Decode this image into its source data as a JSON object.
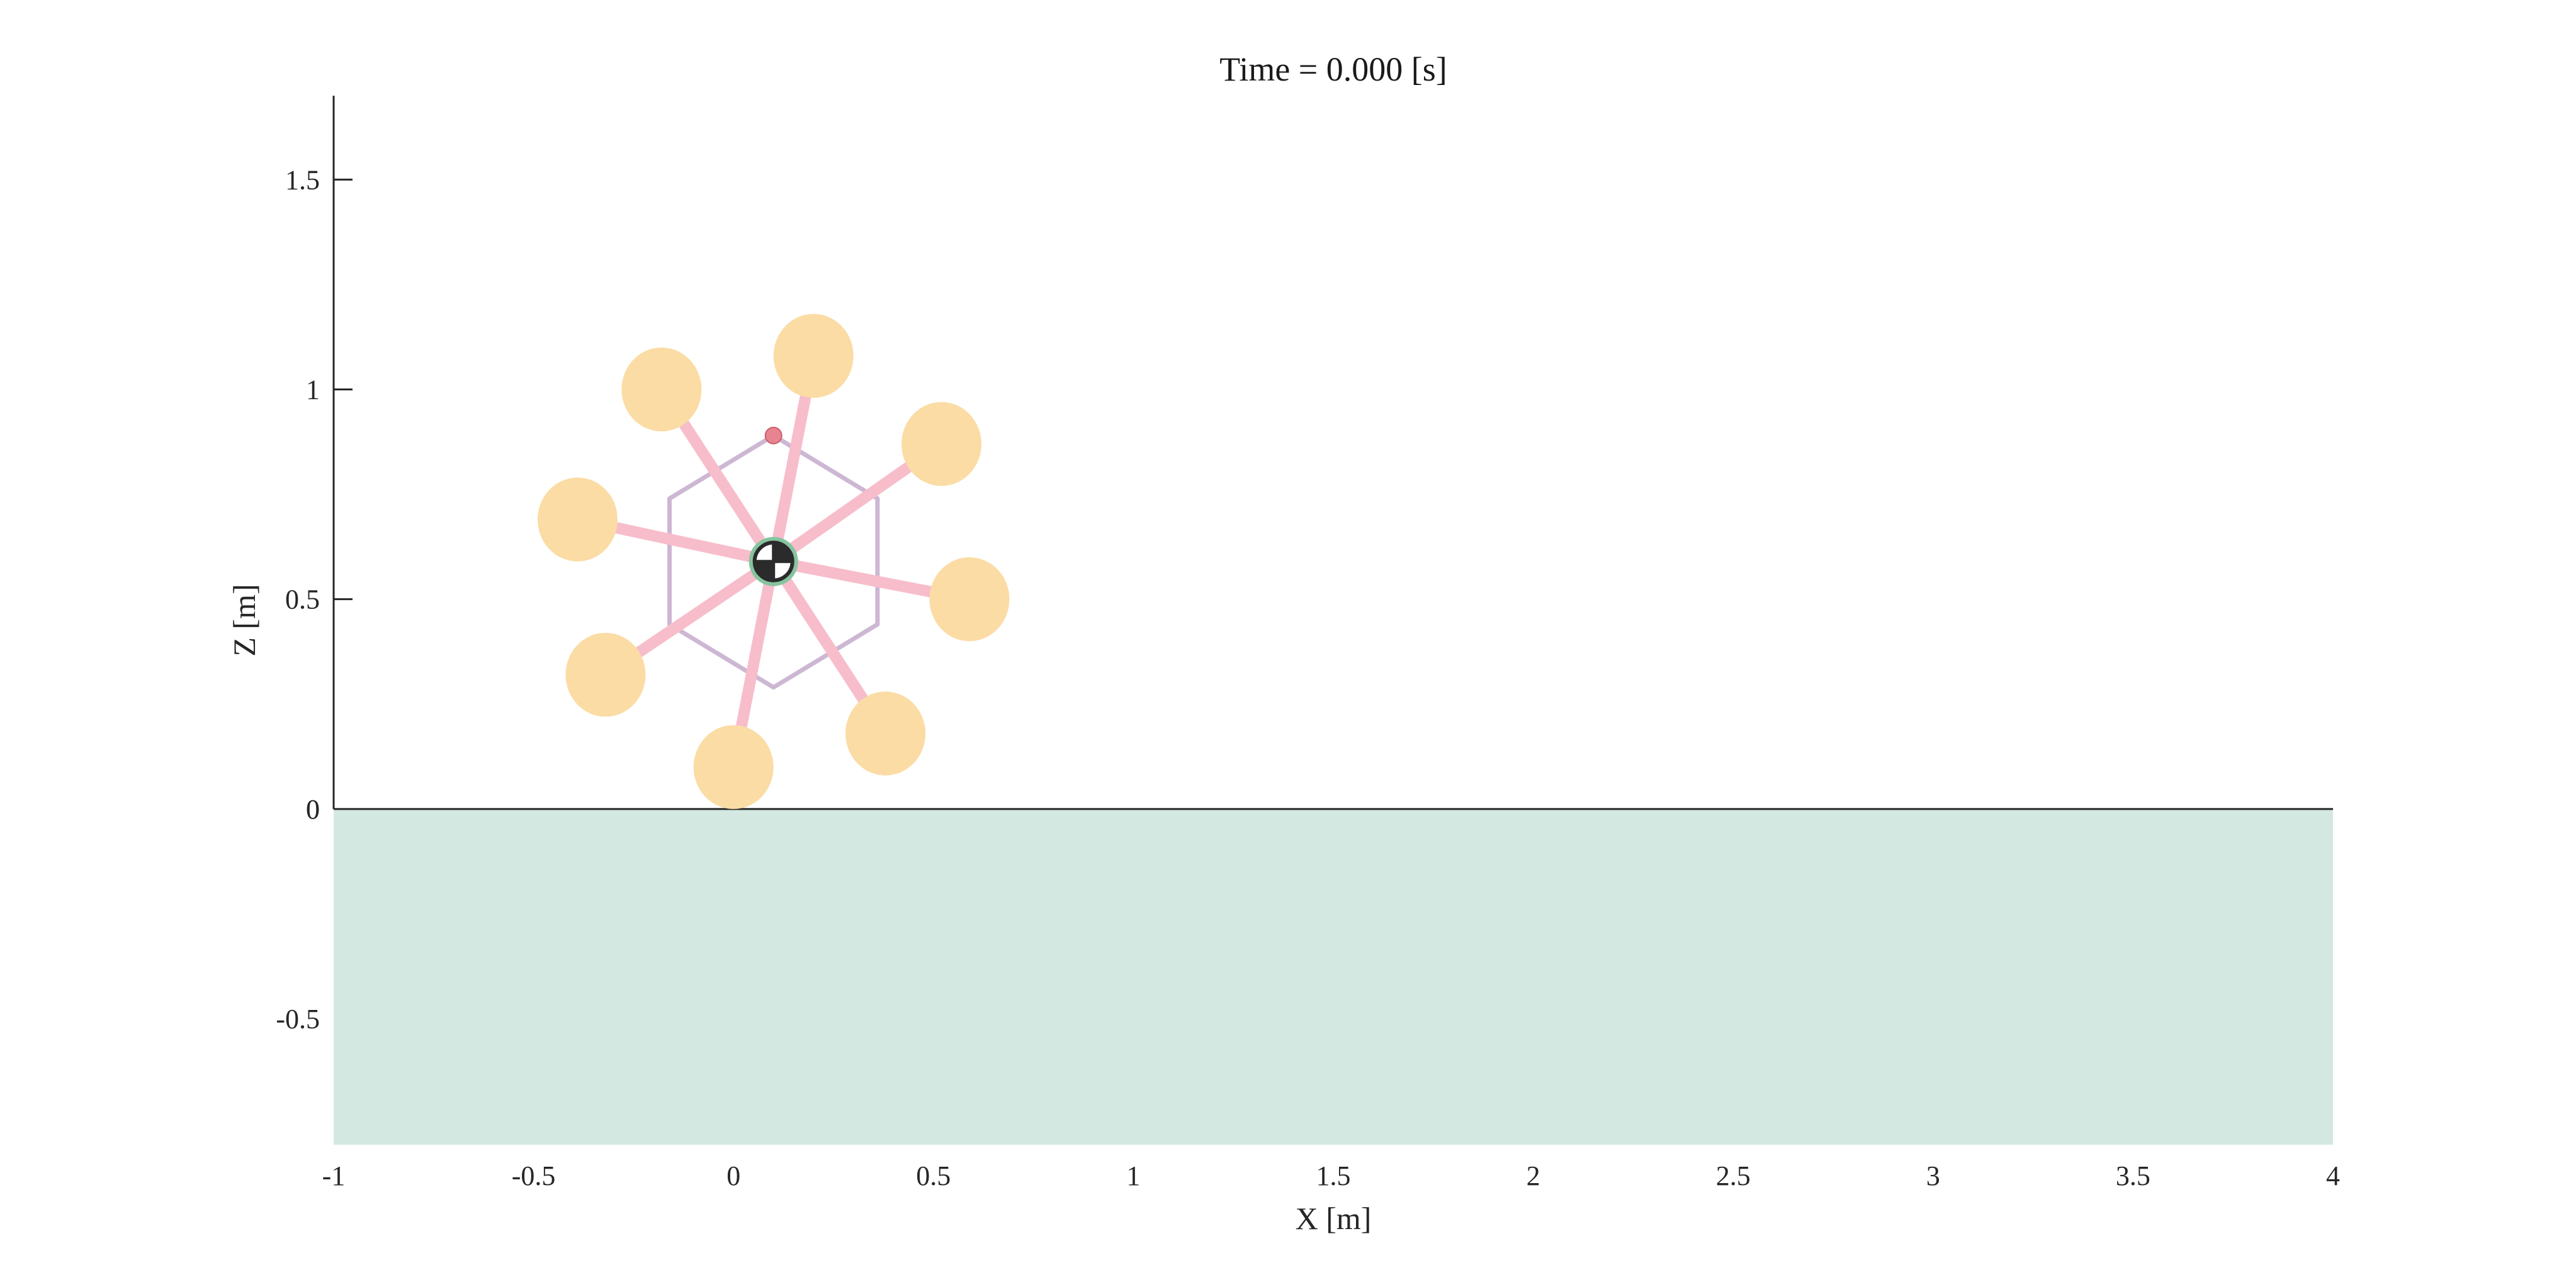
{
  "figure": {
    "title_prefix": "Time = ",
    "time_value": "0.000",
    "time_unit": "[s]",
    "title": "Time = 0.000 [s]"
  },
  "colors": {
    "ground_fill": "#d3e8e1",
    "ground_line": "#262626",
    "axis_line": "#262626",
    "wheel_fill": "#fbdca5",
    "spoke": "#f7bdcb",
    "hexagon": "#cdb7d3",
    "marker": "#e7848f",
    "com_ring": "#86c49f",
    "com_dark": "#2b2b2b"
  },
  "chart_data": {
    "type": "scatter",
    "xlabel": "X [m]",
    "ylabel": "Z [m]",
    "xlim": [
      -1,
      4
    ],
    "ylim": [
      -0.8,
      1.7
    ],
    "xticks": [
      "-1",
      "-0.5",
      "0",
      "0.5",
      "1",
      "1.5",
      "2",
      "2.5",
      "3",
      "3.5",
      "4"
    ],
    "yticks": [
      "-0.5",
      "0",
      "0.5",
      "1",
      "1.5"
    ],
    "xtick_values": [
      -1,
      -0.5,
      0,
      0.5,
      1,
      1.5,
      2,
      2.5,
      3,
      3.5,
      4
    ],
    "ytick_values": [
      -0.5,
      0,
      0.5,
      1,
      1.5
    ],
    "ground": {
      "z": 0,
      "z_bottom": -0.8,
      "x_start": -1,
      "x_end": 4
    },
    "body_center": {
      "x": 0.1,
      "z": 0.59
    },
    "marker_point": {
      "x": 0.1,
      "z": 0.89
    },
    "hexagon_vertices": [
      {
        "x": 0.1,
        "z": 0.89
      },
      {
        "x": 0.36,
        "z": 0.74
      },
      {
        "x": 0.36,
        "z": 0.44
      },
      {
        "x": 0.1,
        "z": 0.29
      },
      {
        "x": -0.16,
        "z": 0.44
      },
      {
        "x": -0.16,
        "z": 0.74
      }
    ],
    "wheel_radius": 0.1,
    "wheels": [
      {
        "x": 0.2,
        "z": 1.08
      },
      {
        "x": 0.52,
        "z": 0.87
      },
      {
        "x": 0.59,
        "z": 0.5
      },
      {
        "x": 0.38,
        "z": 0.18
      },
      {
        "x": 0.0,
        "z": 0.1
      },
      {
        "x": -0.32,
        "z": 0.32
      },
      {
        "x": -0.39,
        "z": 0.69
      },
      {
        "x": -0.18,
        "z": 1.0
      }
    ]
  }
}
